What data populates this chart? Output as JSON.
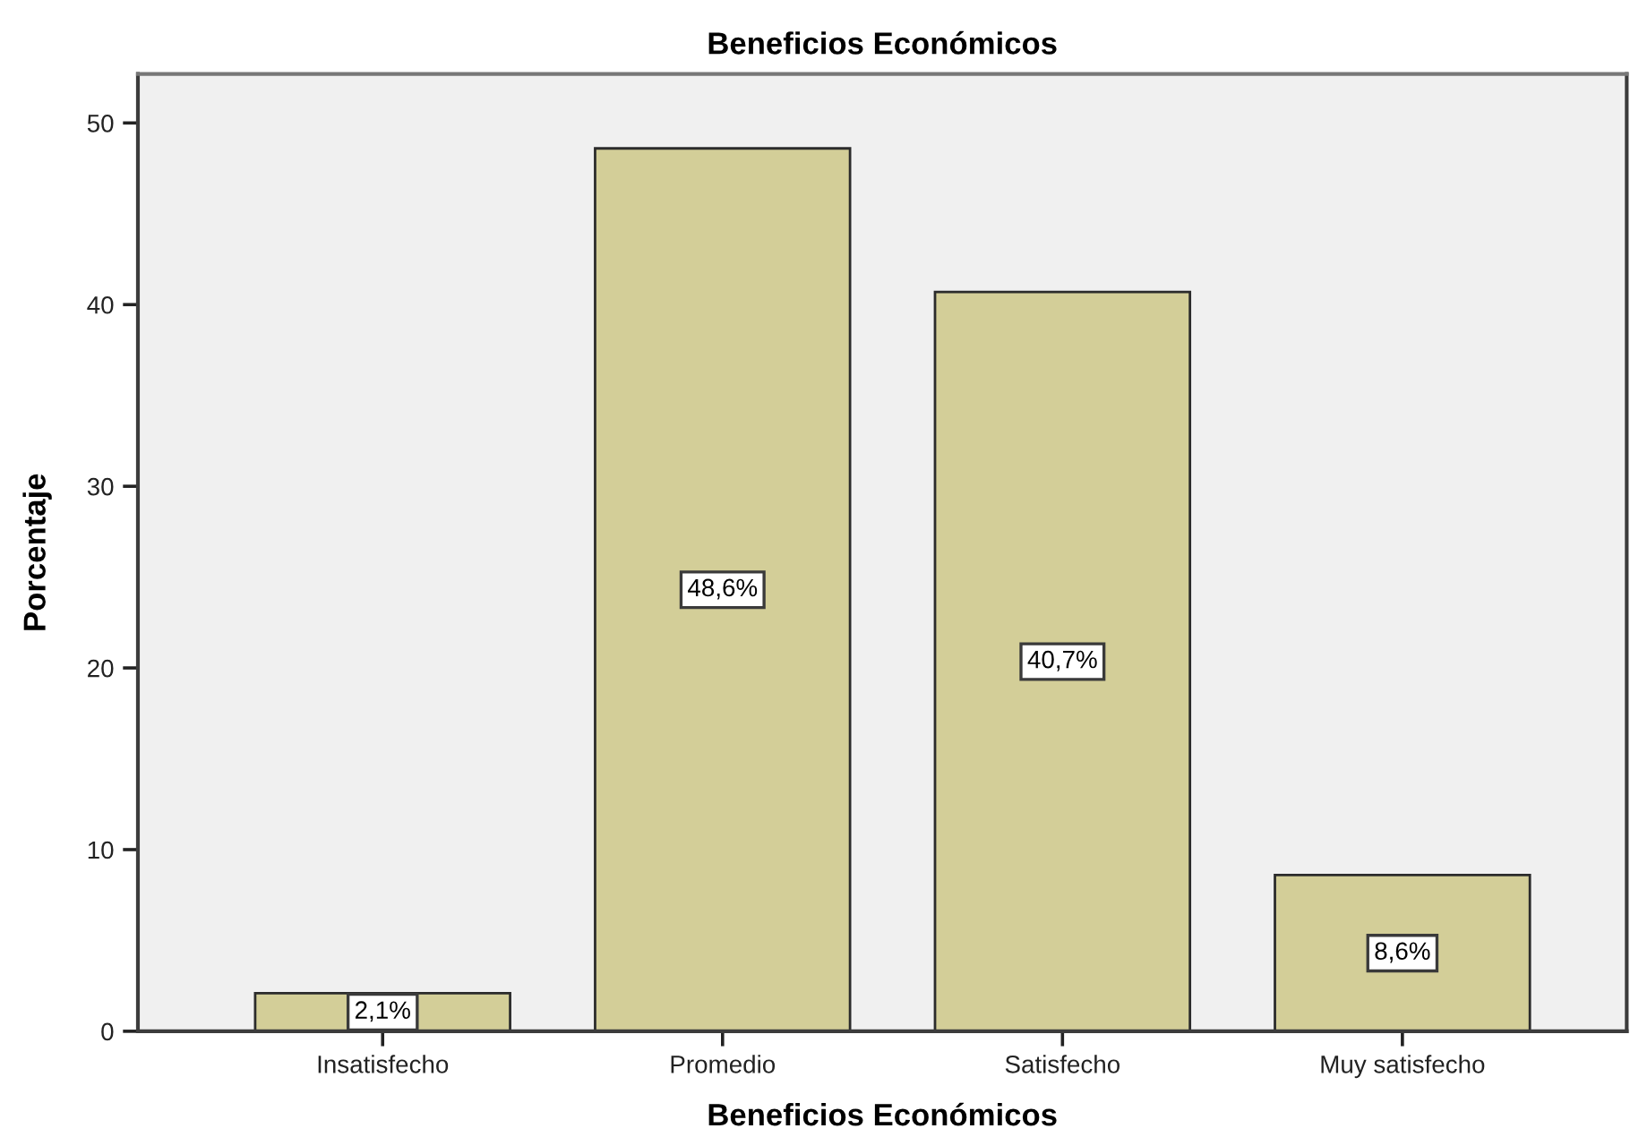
{
  "chart_data": {
    "type": "bar",
    "title": "Beneficios Económicos",
    "xlabel": "Beneficios Económicos",
    "ylabel": "Porcentaje",
    "categories": [
      "Insatisfecho",
      "Promedio",
      "Satisfecho",
      "Muy satisfecho"
    ],
    "values": [
      2.1,
      48.6,
      40.7,
      8.6
    ],
    "value_labels": [
      "2,1%",
      "48,6%",
      "40,7%",
      "8,6%"
    ],
    "color": "#d3ce98",
    "ylim": [
      0,
      52.7
    ],
    "yticks": [
      0,
      10,
      20,
      30,
      40,
      50
    ]
  }
}
